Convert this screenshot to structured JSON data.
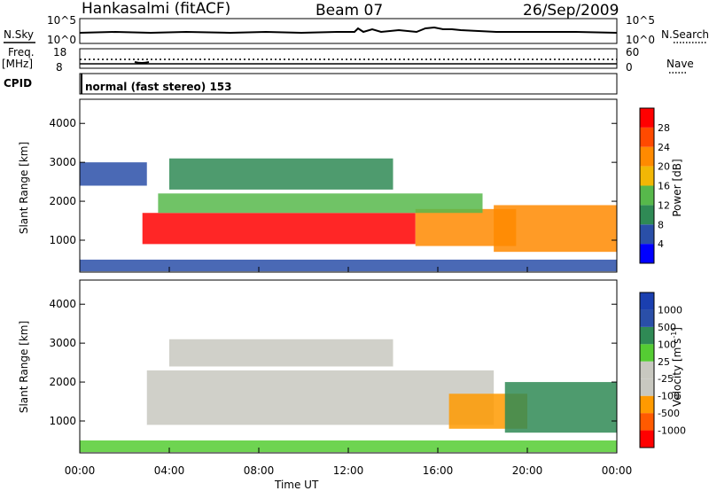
{
  "header": {
    "station": "Hankasalmi (fitACF)",
    "beam": "Beam 07",
    "date": "26/Sep/2009"
  },
  "top_panels": {
    "nsky_label": "N.Sky",
    "nsky_ticks": [
      "10^5",
      "10^0"
    ],
    "nsearch_label": "N.Search",
    "nsearch_ticks": [
      "10^5",
      "10^0"
    ],
    "freq_label": "Freq.",
    "freq_unit": "[MHz]",
    "freq_ticks": [
      "18",
      "8"
    ],
    "nave_label": "Nave",
    "nave_ticks": [
      "60",
      "0"
    ],
    "cpid_label": "CPID",
    "cpid_text": "normal (fast stereo) 153"
  },
  "colors": {
    "power_scale": [
      "#0000ff",
      "#2a4fa8",
      "#2f8a55",
      "#57b84b",
      "#f2b705",
      "#ff8a00",
      "#ff4a00",
      "#ff0000"
    ],
    "velocity_scale": [
      "#ff0000",
      "#ff5a00",
      "#ff9a00",
      "#c8c8c0",
      "#c8c8c0",
      "#55cc33",
      "#2f8a55",
      "#2a4fa8",
      "#1a3fb0"
    ]
  },
  "chart_data": [
    {
      "type": "heatmap",
      "panel": "power",
      "ylabel": "Slant Range [km]",
      "xlabel": "",
      "ylim": [
        180,
        4620
      ],
      "yticks": [
        "1000",
        "2000",
        "3000",
        "4000"
      ],
      "colorbar_label": "Power [dB]",
      "colorbar_ticks": [
        "28",
        "24",
        "20",
        "16",
        "12",
        "8",
        "4"
      ],
      "colorbar_range": [
        0,
        32
      ],
      "bands": [
        {
          "t_start": 2.8,
          "t_end": 15.0,
          "r_low": 900,
          "r_high": 1700,
          "value": 28
        },
        {
          "t_start": 15.0,
          "t_end": 19.5,
          "r_low": 850,
          "r_high": 1800,
          "value": 22
        },
        {
          "t_start": 3.5,
          "t_end": 18.0,
          "r_low": 1700,
          "r_high": 2200,
          "value": 14
        },
        {
          "t_start": 4.0,
          "t_end": 14.0,
          "r_low": 2300,
          "r_high": 3100,
          "value": 10
        },
        {
          "t_start": 0.0,
          "t_end": 3.0,
          "r_low": 2400,
          "r_high": 3000,
          "value": 6
        },
        {
          "t_start": 18.5,
          "t_end": 24.0,
          "r_low": 700,
          "r_high": 1900,
          "value": 20
        },
        {
          "t_start": 0.0,
          "t_end": 24.0,
          "r_low": 200,
          "r_high": 500,
          "value": 6
        }
      ]
    },
    {
      "type": "heatmap",
      "panel": "velocity",
      "ylabel": "Slant Range [km]",
      "xlabel": "Time UT",
      "ylim": [
        180,
        4620
      ],
      "yticks": [
        "1000",
        "2000",
        "3000",
        "4000"
      ],
      "xticks": [
        "00:00",
        "04:00",
        "08:00",
        "12:00",
        "16:00",
        "20:00",
        "00:00"
      ],
      "colorbar_label": "Velocity [m s",
      "colorbar_unit_sup": "-1",
      "colorbar_ticks": [
        "1000",
        "500",
        "100",
        "25",
        "-25",
        "-100",
        "-500",
        "-1000"
      ],
      "bands": [
        {
          "t_start": 3.0,
          "t_end": 18.5,
          "r_low": 900,
          "r_high": 2300,
          "value": 0
        },
        {
          "t_start": 4.0,
          "t_end": 14.0,
          "r_low": 2400,
          "r_high": 3100,
          "value": -50
        },
        {
          "t_start": 16.5,
          "t_end": 20.0,
          "r_low": 800,
          "r_high": 1700,
          "value": -300
        },
        {
          "t_start": 19.0,
          "t_end": 24.0,
          "r_low": 700,
          "r_high": 2000,
          "value": 150
        },
        {
          "t_start": 0.0,
          "t_end": 24.0,
          "r_low": 200,
          "r_high": 500,
          "value": 100
        }
      ]
    }
  ]
}
